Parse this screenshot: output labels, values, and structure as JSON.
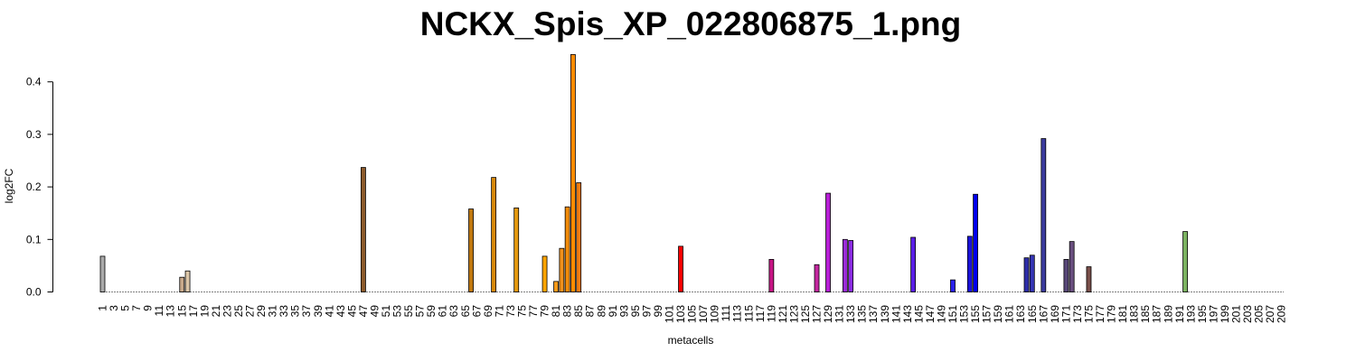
{
  "chart_data": {
    "type": "bar",
    "title": "NCKX_Spis_XP_022806875_1.png",
    "xlabel": "metacells",
    "ylabel": "log2FC",
    "ylim": [
      0,
      0.45
    ],
    "yticks": [
      "0.0",
      "0.1",
      "0.2",
      "0.3",
      "0.4"
    ],
    "x_range": [
      1,
      209
    ],
    "x_tick_step": 2,
    "grid": false,
    "default_color": "#d9d9d9",
    "bars": [
      {
        "metacell": 1,
        "value": 0.068,
        "color": "#aaaaaa"
      },
      {
        "metacell": 15,
        "value": 0.028,
        "color": "#c9a98a"
      },
      {
        "metacell": 16,
        "value": 0.04,
        "color": "#dcc6a8"
      },
      {
        "metacell": 47,
        "value": 0.237,
        "color": "#8b5a2b"
      },
      {
        "metacell": 66,
        "value": 0.158,
        "color": "#c0780f"
      },
      {
        "metacell": 70,
        "value": 0.218,
        "color": "#d6880a"
      },
      {
        "metacell": 74,
        "value": 0.16,
        "color": "#e69a10"
      },
      {
        "metacell": 79,
        "value": 0.068,
        "color": "#ffa500"
      },
      {
        "metacell": 81,
        "value": 0.02,
        "color": "#f59a1a"
      },
      {
        "metacell": 82,
        "value": 0.083,
        "color": "#f0901c"
      },
      {
        "metacell": 83,
        "value": 0.162,
        "color": "#f28c0a"
      },
      {
        "metacell": 84,
        "value": 0.452,
        "color": "#ff8c00"
      },
      {
        "metacell": 85,
        "value": 0.208,
        "color": "#f07a10"
      },
      {
        "metacell": 103,
        "value": 0.087,
        "color": "#ff0000"
      },
      {
        "metacell": 119,
        "value": 0.062,
        "color": "#c71585"
      },
      {
        "metacell": 127,
        "value": 0.052,
        "color": "#c428a0"
      },
      {
        "metacell": 129,
        "value": 0.188,
        "color": "#b71fd6"
      },
      {
        "metacell": 132,
        "value": 0.1,
        "color": "#9a2ad8"
      },
      {
        "metacell": 133,
        "value": 0.098,
        "color": "#8a2be2"
      },
      {
        "metacell": 144,
        "value": 0.104,
        "color": "#5a1ee6"
      },
      {
        "metacell": 151,
        "value": 0.023,
        "color": "#2a20ee"
      },
      {
        "metacell": 154,
        "value": 0.106,
        "color": "#1a12dc"
      },
      {
        "metacell": 155,
        "value": 0.186,
        "color": "#0000ee"
      },
      {
        "metacell": 164,
        "value": 0.065,
        "color": "#2e2eaa"
      },
      {
        "metacell": 165,
        "value": 0.07,
        "color": "#3535b5"
      },
      {
        "metacell": 167,
        "value": 0.292,
        "color": "#3b3b9e"
      },
      {
        "metacell": 171,
        "value": 0.062,
        "color": "#5a4a7a"
      },
      {
        "metacell": 172,
        "value": 0.096,
        "color": "#6a5080"
      },
      {
        "metacell": 175,
        "value": 0.048,
        "color": "#7a4f4a"
      },
      {
        "metacell": 192,
        "value": 0.115,
        "color": "#7cb361"
      }
    ]
  }
}
